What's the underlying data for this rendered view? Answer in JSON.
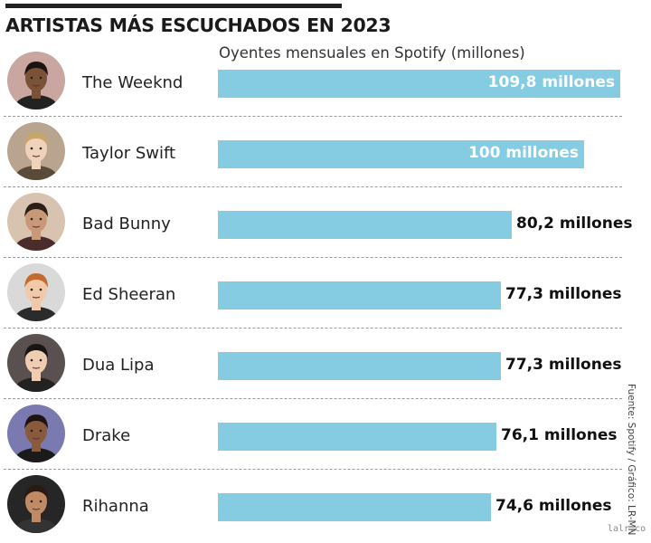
{
  "title": "ARTISTAS MÁS ESCUCHADOS EN 2023",
  "subtitle": "Oyentes mensuales en Spotify (millones)",
  "source": "Fuente: Spotify / Gráfico: LR-MN",
  "watermark": "lalr.co",
  "colors": {
    "bar": "#85cce2",
    "label_inside": "#ffffff",
    "label_outside": "#111111",
    "divider": "#9a9a9a"
  },
  "chart_data": {
    "type": "bar",
    "orientation": "horizontal",
    "title": "ARTISTAS MÁS ESCUCHADOS EN 2023",
    "subtitle": "Oyentes mensuales en Spotify (millones)",
    "categories": [
      "The Weeknd",
      "Taylor Swift",
      "Bad Bunny",
      "Ed Sheeran",
      "Dua Lipa",
      "Drake",
      "Rihanna"
    ],
    "values": [
      109.8,
      100,
      80.2,
      77.3,
      77.3,
      76.1,
      74.6
    ],
    "data_labels": [
      "109,8 millones",
      "100 millones",
      "80,2 millones",
      "77,3 millones",
      "77,3 millones",
      "76,1 millones",
      "74,6 millones"
    ],
    "xlim": [
      0,
      109.8
    ],
    "grid": false,
    "legend": "none"
  }
}
